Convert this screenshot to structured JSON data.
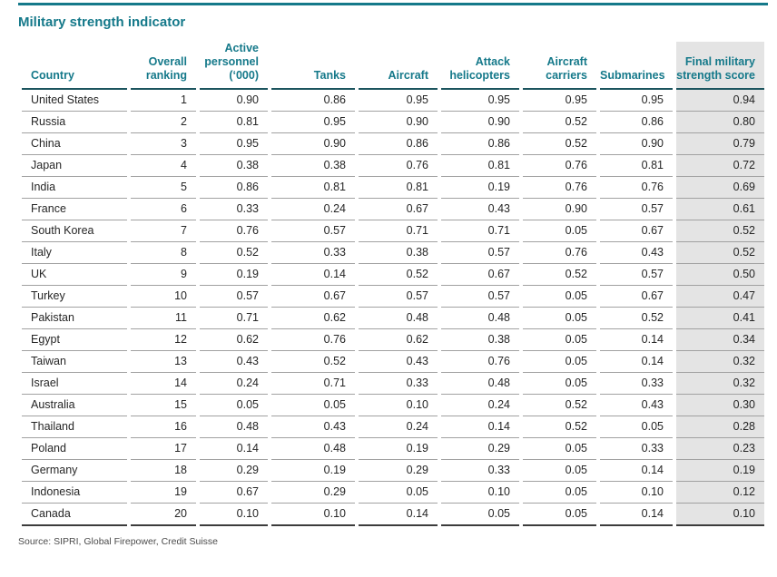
{
  "title": "Military strength indicator",
  "source_note": "Source: SIPRI, Global Firepower, Credit Suisse",
  "colors": {
    "accent": "#15798a",
    "header_rule": "#1c545e",
    "row_line": "#a1a1a1",
    "bottom_rule": "#3c3c3c",
    "highlight_bg": "#e4e4e4"
  },
  "chart_data": {
    "type": "table",
    "title": "Military strength indicator",
    "highlighted_column": "Final military strength score",
    "columns": [
      "Country",
      "Overall ranking",
      "Active personnel (‘000)",
      "Tanks",
      "Aircraft",
      "Attack helicopters",
      "Aircraft carriers",
      "Submarines",
      "Final military strength score"
    ],
    "rows": [
      [
        "United States",
        "1",
        "0.90",
        "0.86",
        "0.95",
        "0.95",
        "0.95",
        "0.95",
        "0.94"
      ],
      [
        "Russia",
        "2",
        "0.81",
        "0.95",
        "0.90",
        "0.90",
        "0.52",
        "0.86",
        "0.80"
      ],
      [
        "China",
        "3",
        "0.95",
        "0.90",
        "0.86",
        "0.86",
        "0.52",
        "0.90",
        "0.79"
      ],
      [
        "Japan",
        "4",
        "0.38",
        "0.38",
        "0.76",
        "0.81",
        "0.76",
        "0.81",
        "0.72"
      ],
      [
        "India",
        "5",
        "0.86",
        "0.81",
        "0.81",
        "0.19",
        "0.76",
        "0.76",
        "0.69"
      ],
      [
        "France",
        "6",
        "0.33",
        "0.24",
        "0.67",
        "0.43",
        "0.90",
        "0.57",
        "0.61"
      ],
      [
        "South Korea",
        "7",
        "0.76",
        "0.57",
        "0.71",
        "0.71",
        "0.05",
        "0.67",
        "0.52"
      ],
      [
        "Italy",
        "8",
        "0.52",
        "0.33",
        "0.38",
        "0.57",
        "0.76",
        "0.43",
        "0.52"
      ],
      [
        "UK",
        "9",
        "0.19",
        "0.14",
        "0.52",
        "0.67",
        "0.52",
        "0.57",
        "0.50"
      ],
      [
        "Turkey",
        "10",
        "0.57",
        "0.67",
        "0.57",
        "0.57",
        "0.05",
        "0.67",
        "0.47"
      ],
      [
        "Pakistan",
        "11",
        "0.71",
        "0.62",
        "0.48",
        "0.48",
        "0.05",
        "0.52",
        "0.41"
      ],
      [
        "Egypt",
        "12",
        "0.62",
        "0.76",
        "0.62",
        "0.38",
        "0.05",
        "0.14",
        "0.34"
      ],
      [
        "Taiwan",
        "13",
        "0.43",
        "0.52",
        "0.43",
        "0.76",
        "0.05",
        "0.14",
        "0.32"
      ],
      [
        "Israel",
        "14",
        "0.24",
        "0.71",
        "0.33",
        "0.48",
        "0.05",
        "0.33",
        "0.32"
      ],
      [
        "Australia",
        "15",
        "0.05",
        "0.05",
        "0.10",
        "0.24",
        "0.52",
        "0.43",
        "0.30"
      ],
      [
        "Thailand",
        "16",
        "0.48",
        "0.43",
        "0.24",
        "0.14",
        "0.52",
        "0.05",
        "0.28"
      ],
      [
        "Poland",
        "17",
        "0.14",
        "0.48",
        "0.19",
        "0.29",
        "0.05",
        "0.33",
        "0.23"
      ],
      [
        "Germany",
        "18",
        "0.29",
        "0.19",
        "0.29",
        "0.33",
        "0.05",
        "0.14",
        "0.19"
      ],
      [
        "Indonesia",
        "19",
        "0.67",
        "0.29",
        "0.05",
        "0.10",
        "0.05",
        "0.10",
        "0.12"
      ],
      [
        "Canada",
        "20",
        "0.10",
        "0.10",
        "0.14",
        "0.05",
        "0.05",
        "0.14",
        "0.10"
      ]
    ]
  }
}
